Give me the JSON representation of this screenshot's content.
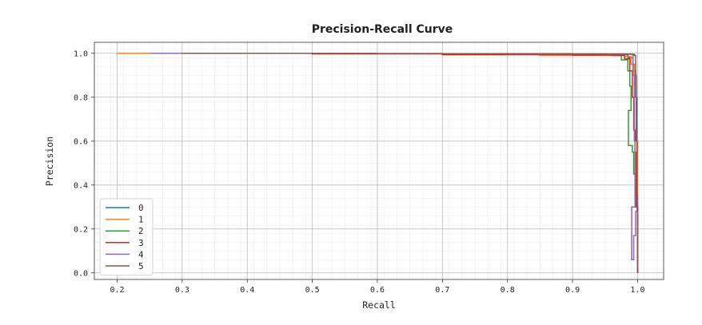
{
  "chart_data": {
    "type": "line",
    "title": "Precision-Recall Curve",
    "xlabel": "Recall",
    "ylabel": "Precision",
    "xlim": [
      0.165,
      1.04
    ],
    "ylim": [
      -0.03,
      1.05
    ],
    "xticks": [
      0.2,
      0.3,
      0.4,
      0.5,
      0.6,
      0.7,
      0.8,
      0.9,
      1.0
    ],
    "yticks": [
      0.0,
      0.2,
      0.4,
      0.6,
      0.8,
      1.0
    ],
    "xtick_labels": [
      "0.2",
      "0.3",
      "0.4",
      "0.5",
      "0.6",
      "0.7",
      "0.8",
      "0.9",
      "1.0"
    ],
    "ytick_labels": [
      "0.0",
      "0.2",
      "0.4",
      "0.6",
      "0.8",
      "1.0"
    ],
    "grid": true,
    "minor_grid": true,
    "legend_position": "bottom-left",
    "series": [
      {
        "name": "0",
        "color": "#1f77b4",
        "x": [
          0.21,
          0.3,
          0.5,
          0.7,
          0.9,
          0.97,
          0.985,
          0.993,
          0.997,
          0.999,
          1.0,
          1.0
        ],
        "y": [
          1.0,
          1.0,
          0.998,
          0.996,
          0.995,
          0.993,
          0.98,
          0.92,
          0.8,
          0.6,
          0.3,
          0.0
        ]
      },
      {
        "name": "1",
        "color": "#ff7f0e",
        "x": [
          0.2,
          0.3,
          0.5,
          0.7,
          0.85,
          0.95,
          0.98,
          0.99,
          0.995,
          0.998,
          1.0,
          1.0
        ],
        "y": [
          1.0,
          1.0,
          0.997,
          0.993,
          0.99,
          0.99,
          0.985,
          0.95,
          0.85,
          0.6,
          0.3,
          0.0
        ]
      },
      {
        "name": "2",
        "color": "#2ca02c",
        "x": [
          0.3,
          0.5,
          0.7,
          0.9,
          0.96,
          0.975,
          0.985,
          0.988,
          0.99,
          0.986,
          0.992,
          0.994,
          0.997,
          1.0,
          1.0
        ],
        "y": [
          1.0,
          0.998,
          0.996,
          0.993,
          0.99,
          0.97,
          0.92,
          0.85,
          0.74,
          0.58,
          0.55,
          0.45,
          0.3,
          0.15,
          0.0
        ]
      },
      {
        "name": "3",
        "color": "#d62728",
        "x": [
          0.3,
          0.5,
          0.7,
          0.9,
          0.965,
          0.98,
          0.988,
          0.992,
          0.994,
          0.996,
          0.998,
          1.0,
          1.0
        ],
        "y": [
          1.0,
          0.998,
          0.994,
          0.992,
          0.99,
          0.975,
          0.92,
          0.8,
          0.65,
          0.55,
          0.3,
          0.22,
          0.0
        ]
      },
      {
        "name": "4",
        "color": "#9467bd",
        "x": [
          0.25,
          0.4,
          0.6,
          0.8,
          0.95,
          0.99,
          0.993,
          0.995,
          0.996,
          0.991,
          0.994,
          0.997,
          0.999,
          1.0,
          1.0
        ],
        "y": [
          1.0,
          1.0,
          0.998,
          0.997,
          0.996,
          0.995,
          0.9,
          0.6,
          0.3,
          0.06,
          0.17,
          0.28,
          0.35,
          0.3,
          0.0
        ]
      },
      {
        "name": "5",
        "color": "#8c564b",
        "x": [
          0.3,
          0.5,
          0.7,
          0.9,
          0.97,
          0.99,
          0.995,
          0.997,
          0.998,
          0.999,
          1.0,
          1.0
        ],
        "y": [
          1.0,
          0.999,
          0.998,
          0.997,
          0.997,
          0.996,
          0.99,
          0.9,
          0.6,
          0.3,
          0.1,
          0.0
        ]
      }
    ]
  }
}
